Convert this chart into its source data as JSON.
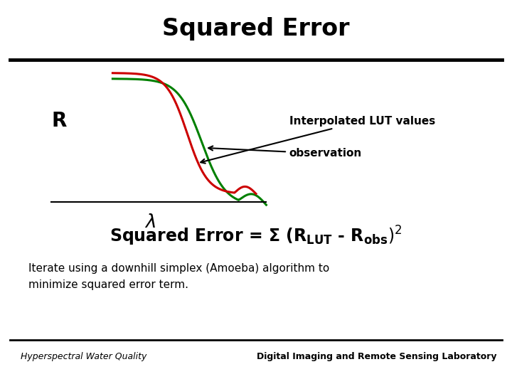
{
  "title": "Squared Error",
  "title_fontsize": 24,
  "title_fontweight": "bold",
  "bg_color": "#ffffff",
  "r_label": "R",
  "lambda_label": "λ",
  "label_lut": "Interpolated LUT values",
  "label_obs": "observation",
  "iterate_text": "Iterate using a downhill simplex (Amoeba) algorithm to\nminimize squared error term.",
  "footer_left": "Hyperspectral Water Quality",
  "footer_right": "Digital Imaging and Remote Sensing Laboratory",
  "lut_color": "#008000",
  "obs_color": "#cc0000"
}
